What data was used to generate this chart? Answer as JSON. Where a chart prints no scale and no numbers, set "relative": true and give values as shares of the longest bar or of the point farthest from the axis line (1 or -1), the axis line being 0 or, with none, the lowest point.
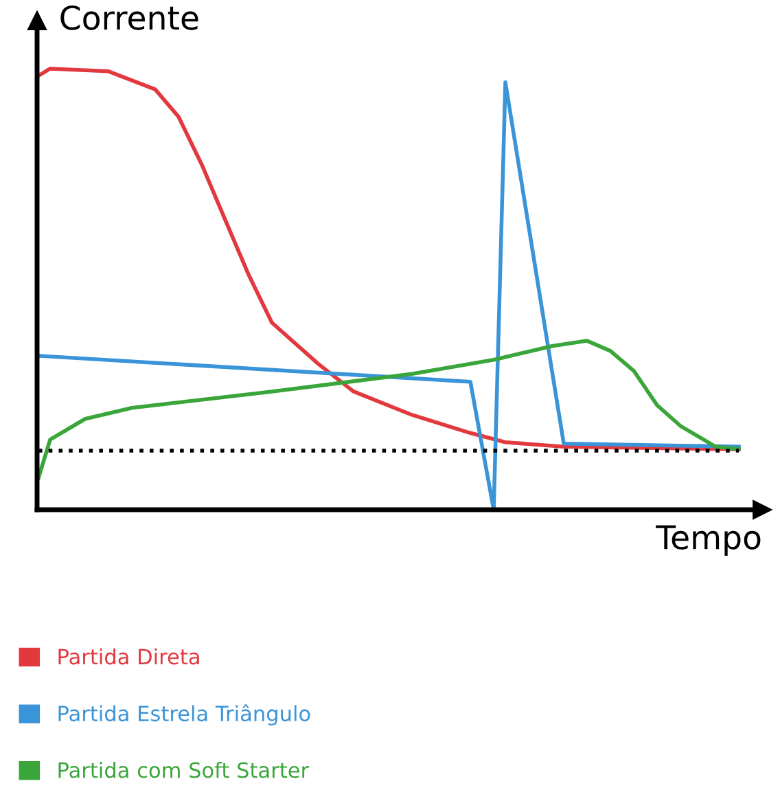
{
  "chart_data": {
    "type": "line",
    "relative": true,
    "xlabel": "Tempo",
    "ylabel": "Corrente",
    "legend": "bottom left",
    "marker": "none",
    "line_style": "solid",
    "categories": [
      null,
      null,
      null,
      null,
      null,
      null,
      null,
      null,
      null,
      null,
      null,
      null,
      null,
      null,
      null,
      null,
      null,
      null,
      null,
      null,
      null,
      null,
      null,
      null,
      null,
      null,
      null,
      null,
      null,
      null,
      null,
      null,
      null,
      null,
      null,
      null,
      null,
      null,
      null,
      null,
      null,
      null,
      null,
      null,
      null,
      null,
      null,
      null,
      null,
      null,
      null,
      null,
      null,
      null,
      null,
      null,
      null,
      null,
      null,
      null,
      null
    ],
    "series": [
      {
        "name": "Partida Direta",
        "color": "#e2393f",
        "values": [
          0.984,
          1.0,
          null,
          null,
          null,
          null,
          0.994,
          null,
          null,
          null,
          0.953,
          null,
          0.891,
          null,
          0.782,
          null,
          0.657,
          null,
          0.533,
          null,
          0.424,
          null,
          null,
          null,
          0.33,
          null,
          null,
          0.268,
          null,
          null,
          null,
          null,
          0.215,
          null,
          null,
          null,
          null,
          0.174,
          null,
          null,
          0.153,
          null,
          null,
          null,
          null,
          0.143,
          null,
          null,
          null,
          null,
          null,
          null,
          null,
          null,
          null,
          null,
          null,
          null,
          null,
          null,
          0.137
        ]
      },
      {
        "name": "Partida Estrela Triângulo",
        "color": "#3a94d8",
        "values": [
          0.349,
          null,
          null,
          null,
          null,
          null,
          null,
          null,
          null,
          null,
          null,
          null,
          null,
          null,
          null,
          null,
          null,
          null,
          null,
          null,
          null,
          null,
          null,
          null,
          null,
          null,
          null,
          null,
          null,
          null,
          null,
          null,
          null,
          null,
          null,
          null,
          null,
          0.29,
          null,
          0.0,
          0.969,
          null,
          null,
          null,
          null,
          0.15,
          null,
          null,
          null,
          null,
          null,
          null,
          null,
          null,
          null,
          null,
          null,
          null,
          null,
          null,
          0.143
        ]
      },
      {
        "name": "Partida com Soft Starter",
        "color": "#3aa53a",
        "values": [
          0.072,
          0.159,
          null,
          null,
          0.206,
          null,
          null,
          null,
          0.231,
          null,
          null,
          null,
          null,
          null,
          null,
          null,
          null,
          null,
          null,
          null,
          0.268,
          null,
          null,
          null,
          null,
          null,
          null,
          null,
          null,
          null,
          null,
          null,
          0.308,
          null,
          null,
          null,
          null,
          null,
          null,
          0.34,
          null,
          null,
          null,
          null,
          0.371,
          null,
          null,
          0.383,
          null,
          0.36,
          null,
          0.315,
          null,
          0.237,
          null,
          0.19,
          null,
          null,
          0.143,
          null,
          0.137
        ]
      }
    ],
    "ref_lines": [
      {
        "axis": "y",
        "value": 0.134,
        "color": "#000000",
        "line_style": "dotted"
      }
    ]
  }
}
